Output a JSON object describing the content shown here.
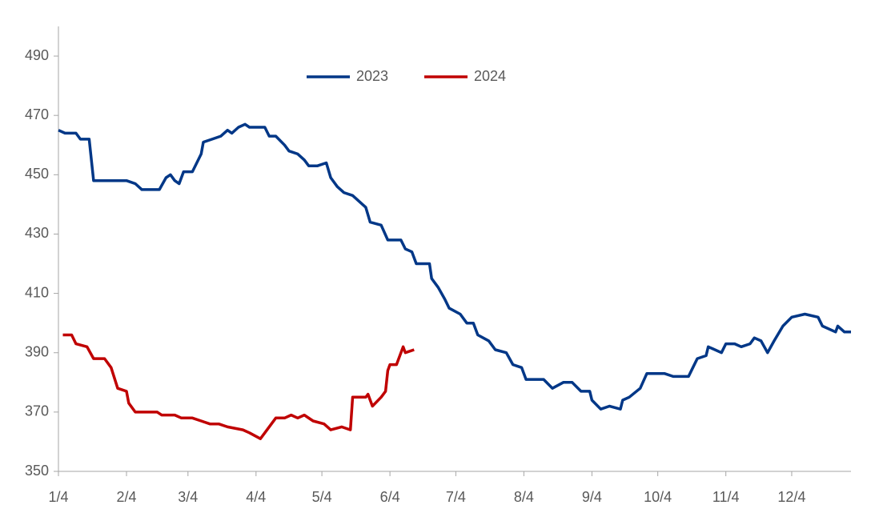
{
  "chart_data": {
    "type": "line",
    "legend": "top",
    "xlim": [
      "1/4",
      "12/31"
    ],
    "xticks": [
      "1/4",
      "2/4",
      "3/4",
      "4/4",
      "5/4",
      "6/4",
      "7/4",
      "8/4",
      "9/4",
      "10/4",
      "11/4",
      "12/4"
    ],
    "ylim": [
      350,
      500
    ],
    "yticks": [
      350,
      370,
      390,
      410,
      430,
      450,
      470,
      490
    ],
    "grid": false,
    "series": [
      {
        "name": "2023",
        "color": "#003787",
        "x": [
          "1/4",
          "1/7",
          "1/12",
          "1/14",
          "1/18",
          "1/20",
          "2/4",
          "2/8",
          "2/11",
          "2/19",
          "2/22",
          "2/24",
          "2/26",
          "2/28",
          "3/2",
          "3/6",
          "3/10",
          "3/11",
          "3/15",
          "3/19",
          "3/22",
          "3/24",
          "3/27",
          "3/30",
          "4/1",
          "4/8",
          "4/10",
          "4/13",
          "4/17",
          "4/19",
          "4/23",
          "4/26",
          "4/28",
          "5/2",
          "5/6",
          "5/8",
          "5/11",
          "5/14",
          "5/18",
          "5/24",
          "5/26",
          "5/31",
          "6/3",
          "6/9",
          "6/11",
          "6/14",
          "6/16",
          "6/22",
          "6/23",
          "6/26",
          "6/29",
          "7/1",
          "7/6",
          "7/9",
          "7/12",
          "7/14",
          "7/19",
          "7/22",
          "7/27",
          "7/30",
          "8/3",
          "8/5",
          "8/13",
          "8/17",
          "8/22",
          "8/26",
          "8/30",
          "9/3",
          "9/4",
          "9/8",
          "9/12",
          "9/17",
          "9/18",
          "9/21",
          "9/26",
          "9/29",
          "10/7",
          "10/11",
          "10/18",
          "10/20",
          "10/22",
          "10/26",
          "10/27",
          "11/2",
          "11/4",
          "11/8",
          "11/11",
          "11/15",
          "11/17",
          "11/20",
          "11/23",
          "11/26",
          "11/30",
          "12/4",
          "12/10",
          "12/16",
          "12/18",
          "12/24",
          "12/25",
          "12/28",
          "12/31"
        ],
        "values": [
          465,
          464,
          464,
          462,
          462,
          448,
          448,
          447,
          445,
          445,
          449,
          450,
          448,
          447,
          451,
          451,
          457,
          461,
          462,
          463,
          465,
          464,
          466,
          467,
          466,
          466,
          463,
          463,
          460,
          458,
          457,
          455,
          453,
          453,
          454,
          449,
          446,
          444,
          443,
          439,
          434,
          433,
          428,
          428,
          425,
          424,
          420,
          420,
          415,
          412,
          408,
          405,
          403,
          400,
          400,
          396,
          394,
          391,
          390,
          386,
          385,
          381,
          381,
          378,
          380,
          380,
          377,
          377,
          374,
          371,
          372,
          371,
          374,
          375,
          378,
          383,
          383,
          382,
          382,
          385,
          388,
          389,
          392,
          390,
          393,
          393,
          392,
          393,
          395,
          394,
          390,
          394,
          399,
          402,
          403,
          402,
          399,
          397,
          399,
          397,
          397
        ]
      },
      {
        "name": "2024",
        "color": "#c00000",
        "x": [
          "1/6",
          "1/10",
          "1/12",
          "1/17",
          "1/20",
          "1/25",
          "1/28",
          "1/31",
          "2/4",
          "2/5",
          "2/8",
          "2/18",
          "2/20",
          "2/26",
          "3/1",
          "3/6",
          "3/10",
          "3/14",
          "3/18",
          "3/22",
          "3/29",
          "4/1",
          "4/6",
          "4/8",
          "4/13",
          "4/17",
          "4/20",
          "4/23",
          "4/26",
          "4/30",
          "5/5",
          "5/8",
          "5/13",
          "5/17",
          "5/18",
          "5/24",
          "5/25",
          "5/27",
          "5/31",
          "6/2",
          "6/3",
          "6/4",
          "6/7",
          "6/10",
          "6/11",
          "6/15"
        ],
        "values": [
          396,
          396,
          393,
          392,
          388,
          388,
          385,
          378,
          377,
          373,
          370,
          370,
          369,
          369,
          368,
          368,
          367,
          366,
          366,
          365,
          364,
          363,
          361,
          363,
          368,
          368,
          369,
          368,
          369,
          367,
          366,
          364,
          365,
          364,
          375,
          375,
          376,
          372,
          375,
          377,
          384,
          386,
          386,
          392,
          390,
          391
        ]
      }
    ]
  }
}
